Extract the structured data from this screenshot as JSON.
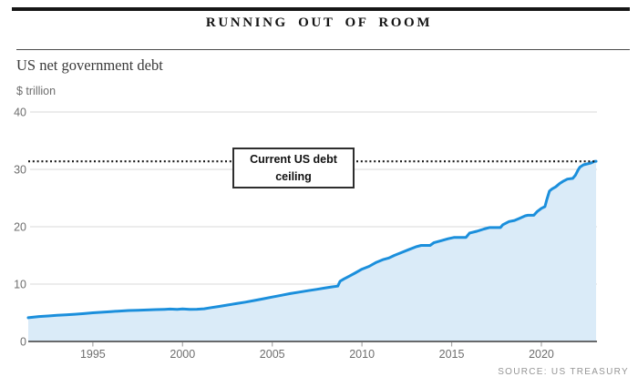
{
  "header": {
    "title": "RUNNING OUT OF ROOM",
    "subtitle": "US net government debt",
    "unit": "$ trillion"
  },
  "annotation": {
    "label": "Current US debt ceiling"
  },
  "source": "SOURCE: US TREASURY",
  "colors": {
    "line": "#1b8fdc",
    "fill": "#daebf8",
    "grid": "#dadada",
    "axis": "#3b3b3b",
    "tick": "#a8a8a8",
    "tick_label": "#6e6e6e",
    "ceiling": "#1a1a1a"
  },
  "chart_data": {
    "type": "area",
    "title": "RUNNING OUT OF ROOM",
    "subtitle": "US net government debt",
    "ylabel": "$ trillion",
    "xlim": [
      1991.4,
      2023.1
    ],
    "ylim": [
      0,
      40
    ],
    "x_ticks": [
      1995,
      2000,
      2005,
      2010,
      2015,
      2020
    ],
    "y_ticks": [
      0,
      10,
      20,
      30,
      40
    ],
    "grid": "horizontal",
    "legend": "none",
    "ceiling_line": {
      "label": "Current US debt ceiling",
      "value": 31.4,
      "style": "dotted"
    },
    "series": [
      {
        "name": "US net government debt ($ trillion)",
        "points": [
          [
            1991.4,
            4.15
          ],
          [
            1992,
            4.35
          ],
          [
            1992.5,
            4.45
          ],
          [
            1993,
            4.55
          ],
          [
            1993.5,
            4.65
          ],
          [
            1994,
            4.75
          ],
          [
            1994.5,
            4.85
          ],
          [
            1995,
            5.0
          ],
          [
            1995.5,
            5.1
          ],
          [
            1996,
            5.2
          ],
          [
            1996.5,
            5.3
          ],
          [
            1997,
            5.4
          ],
          [
            1997.5,
            5.45
          ],
          [
            1998,
            5.5
          ],
          [
            1998.5,
            5.55
          ],
          [
            1999,
            5.6
          ],
          [
            1999.3,
            5.65
          ],
          [
            1999.7,
            5.6
          ],
          [
            2000,
            5.66
          ],
          [
            2000.4,
            5.6
          ],
          [
            2000.8,
            5.62
          ],
          [
            2001.2,
            5.7
          ],
          [
            2001.6,
            5.9
          ],
          [
            2002,
            6.1
          ],
          [
            2002.5,
            6.35
          ],
          [
            2003,
            6.6
          ],
          [
            2003.5,
            6.85
          ],
          [
            2004,
            7.15
          ],
          [
            2004.5,
            7.45
          ],
          [
            2005,
            7.75
          ],
          [
            2005.5,
            8.05
          ],
          [
            2006,
            8.35
          ],
          [
            2006.5,
            8.6
          ],
          [
            2007,
            8.85
          ],
          [
            2007.5,
            9.1
          ],
          [
            2007.9,
            9.3
          ],
          [
            2008.3,
            9.5
          ],
          [
            2008.65,
            9.65
          ],
          [
            2008.78,
            10.5
          ],
          [
            2009,
            10.9
          ],
          [
            2009.3,
            11.4
          ],
          [
            2009.6,
            11.9
          ],
          [
            2010,
            12.6
          ],
          [
            2010.4,
            13.1
          ],
          [
            2010.8,
            13.8
          ],
          [
            2011.2,
            14.3
          ],
          [
            2011.5,
            14.55
          ],
          [
            2011.8,
            15.0
          ],
          [
            2012.2,
            15.5
          ],
          [
            2012.6,
            16.0
          ],
          [
            2013,
            16.5
          ],
          [
            2013.3,
            16.74
          ],
          [
            2013.8,
            16.74
          ],
          [
            2014,
            17.2
          ],
          [
            2014.4,
            17.55
          ],
          [
            2014.8,
            17.9
          ],
          [
            2015.15,
            18.15
          ],
          [
            2015.8,
            18.15
          ],
          [
            2016,
            18.9
          ],
          [
            2016.4,
            19.2
          ],
          [
            2016.8,
            19.6
          ],
          [
            2017.1,
            19.85
          ],
          [
            2017.72,
            19.85
          ],
          [
            2017.85,
            20.35
          ],
          [
            2018.2,
            20.9
          ],
          [
            2018.5,
            21.1
          ],
          [
            2018.8,
            21.5
          ],
          [
            2019.1,
            21.9
          ],
          [
            2019.25,
            22.0
          ],
          [
            2019.58,
            22.0
          ],
          [
            2019.75,
            22.6
          ],
          [
            2020,
            23.2
          ],
          [
            2020.2,
            23.5
          ],
          [
            2020.3,
            24.7
          ],
          [
            2020.45,
            26.2
          ],
          [
            2020.6,
            26.6
          ],
          [
            2020.8,
            26.95
          ],
          [
            2021,
            27.5
          ],
          [
            2021.2,
            27.9
          ],
          [
            2021.45,
            28.3
          ],
          [
            2021.75,
            28.43
          ],
          [
            2021.9,
            29.0
          ],
          [
            2022.05,
            29.9
          ],
          [
            2022.15,
            30.4
          ],
          [
            2022.35,
            30.8
          ],
          [
            2022.55,
            30.95
          ],
          [
            2022.75,
            31.1
          ],
          [
            2022.95,
            31.38
          ],
          [
            2023.05,
            31.42
          ]
        ]
      }
    ],
    "source": "SOURCE: US TREASURY"
  }
}
